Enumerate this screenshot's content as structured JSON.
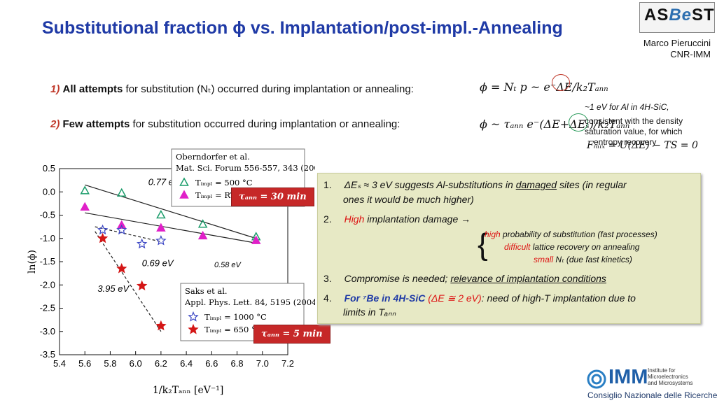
{
  "title": "Substitutional fraction ϕ vs. Implantation/post-impl.-Annealing",
  "logo": {
    "text_a": "AS",
    "text_be": "Be",
    "text_b": "ST"
  },
  "author": {
    "name": "Marco Pieruccini",
    "affiliation": "CNR-IMM"
  },
  "rows": [
    {
      "num": "1)",
      "bold": "All attempts",
      "rest": "for substitution (Nₜ) occurred during implantation or annealing:",
      "formula": "ϕ = Nₜ p ~ e⁻ΔE/k₂Tₐₙₙ"
    },
    {
      "num": "2)",
      "bold": "Few attempts",
      "rest": "for substitution occurred during implantation or annealing:",
      "formula": "ϕ ~ τₐₙₙ e⁻(ΔE+ΔEₛ)/k₂Tₐₙₙ"
    }
  ],
  "side_notes": {
    "ev_note": "~1 eV  for Al in 4H-SiC,",
    "density_note": "consistent with the density saturation value, for which",
    "entropy_note": "entropy recovery",
    "fmix": "Fₘᵢₓ = U(ΔE) − TS = 0"
  },
  "badges": {
    "tau30": "τₐₙₙ = 30 min",
    "tau5": "τₐₙₙ = 5 min"
  },
  "panel": {
    "i1_num": "1.",
    "i1_a": "ΔEₛ ≈ 3 eV suggests Al-substitutions in ",
    "i1_u": "damaged",
    "i1_b": " sites (in regular",
    "i1_c": "ones it would be much higher)",
    "i2_num": "2.",
    "i2_red": "High",
    "i2_rest": " implantation damage →",
    "i2_l1_red": "high",
    "i2_l1": " probability of substitution (fast processes)",
    "i2_l2_red": "difficult",
    "i2_l2": " lattice recovery on annealing",
    "i2_l3_red": "small",
    "i2_l3": " Nₜ (due fast kinetics)",
    "i3_num": "3.",
    "i3_a": "Compromise is needed; ",
    "i3_u": "relevance of implantation conditions",
    "i4_num": "4.",
    "i4_blue": "For ⁷Be in 4H-SiC",
    "i4_red": " (ΔE ≅ 2 eV)",
    "i4_rest": ": need of high-T implantation due to",
    "i4_b": "limits in Tₐₙₙ"
  },
  "chart_data": {
    "type": "scatter",
    "xlabel": "1/k₂Tₐₙₙ   [eV⁻¹]",
    "ylabel": "ln(ϕ)",
    "xlim": [
      5.4,
      7.2
    ],
    "ylim": [
      -3.5,
      0.5
    ],
    "x_ticks": [
      "5.4",
      "5.6",
      "5.8",
      "6.0",
      "6.2",
      "6.4",
      "6.6",
      "6.8",
      "7.0",
      "7.2"
    ],
    "y_ticks": [
      "0.5",
      "0.0",
      "-0.5",
      "-1.0",
      "-1.5",
      "-2.0",
      "-2.5",
      "-3.0",
      "-3.5"
    ],
    "series": [
      {
        "name": "Tᵢₘₚₗ = 500 °C",
        "marker": "open-triangle",
        "color": "#1a9c6a",
        "x": [
          5.6,
          5.89,
          6.2,
          6.53,
          6.95
        ],
        "y": [
          0.02,
          -0.03,
          -0.5,
          -0.7,
          -0.97
        ]
      },
      {
        "name": "Tᵢₘₚₗ = RT",
        "marker": "filled-triangle",
        "color": "#e020c8",
        "x": [
          5.6,
          5.89,
          6.2,
          6.53,
          6.95
        ],
        "y": [
          -0.33,
          -0.72,
          -0.78,
          -0.95,
          -1.05
        ]
      },
      {
        "name": "Tᵢₘₚₗ = 1000 °C",
        "marker": "open-star",
        "color": "#3b46c4",
        "x": [
          5.74,
          5.89,
          6.05,
          6.2
        ],
        "y": [
          -0.82,
          -0.82,
          -1.12,
          -1.05
        ]
      },
      {
        "name": "Tᵢₘₚₗ = 650 °C",
        "marker": "filled-star",
        "color": "#d41616",
        "x": [
          5.74,
          5.89,
          6.05,
          6.2
        ],
        "y": [
          -1.0,
          -1.65,
          -2.02,
          -2.88
        ]
      }
    ],
    "fit_lines": [
      {
        "label": "0.77 eV",
        "x": [
          5.6,
          6.95
        ],
        "y": [
          0.15,
          -1.0
        ],
        "style": "solid"
      },
      {
        "label": "0.58 eV",
        "x": [
          5.6,
          6.95
        ],
        "y": [
          -0.45,
          -1.1
        ],
        "style": "solid"
      },
      {
        "label": "0.69 eV",
        "x": [
          5.68,
          6.2
        ],
        "y": [
          -0.75,
          -1.07
        ],
        "style": "dashed"
      },
      {
        "label": "3.95 eV",
        "x": [
          5.68,
          6.2
        ],
        "y": [
          -0.85,
          -3.0
        ],
        "style": "dashed"
      }
    ],
    "legend1": {
      "line1": "Oberndorfer et al.",
      "line2": "Mat. Sci. Forum 556-557, 343 (2007)",
      "placement": "top-right"
    },
    "legend2": {
      "line1": "Saks et al.",
      "line2": "Appl. Phys. Lett. 84, 5195 (2004)",
      "placement": "bottom-right"
    }
  },
  "footer": {
    "brand": "IMM",
    "sub1": "Institute for",
    "sub2": "Microelectronics",
    "sub3": "and Microsystems",
    "cnr": "Consiglio Nazionale delle Ricerche"
  }
}
